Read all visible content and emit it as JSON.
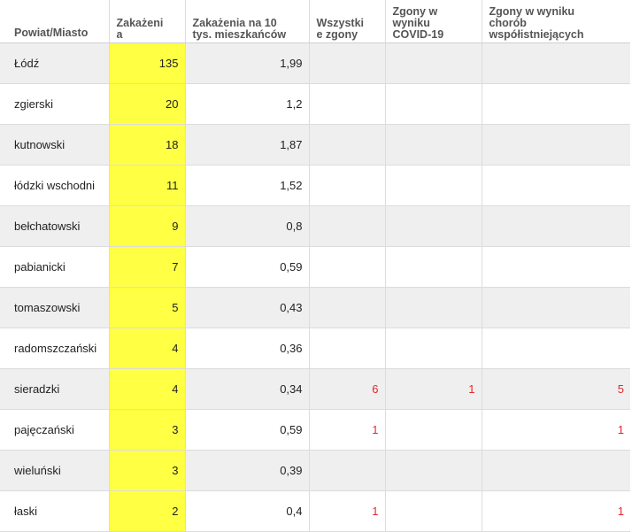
{
  "headers": [
    {
      "l1": "Powiat/Miasto",
      "l2": "",
      "l3": ""
    },
    {
      "l1": "Zakażeni",
      "l2": "a",
      "l3": ""
    },
    {
      "l1": "Zakażenia na 10",
      "l2": "tys. mieszkańców",
      "l3": ""
    },
    {
      "l1": "Wszystki",
      "l2": "e zgony",
      "l3": ""
    },
    {
      "l1": "Zgony w",
      "l2": "wyniku",
      "l3": "COVID-19"
    },
    {
      "l1": "Zgony w wyniku",
      "l2": "chorób",
      "l3": "współistniejących"
    }
  ],
  "rows": [
    {
      "name": "Łódź",
      "cases": "135",
      "per10k": "1,99",
      "all_deaths": "",
      "covid_deaths": "",
      "comorb_deaths": ""
    },
    {
      "name": "zgierski",
      "cases": "20",
      "per10k": "1,2",
      "all_deaths": "",
      "covid_deaths": "",
      "comorb_deaths": ""
    },
    {
      "name": "kutnowski",
      "cases": "18",
      "per10k": "1,87",
      "all_deaths": "",
      "covid_deaths": "",
      "comorb_deaths": ""
    },
    {
      "name": "łódzki wschodni",
      "cases": "11",
      "per10k": "1,52",
      "all_deaths": "",
      "covid_deaths": "",
      "comorb_deaths": ""
    },
    {
      "name": "bełchatowski",
      "cases": "9",
      "per10k": "0,8",
      "all_deaths": "",
      "covid_deaths": "",
      "comorb_deaths": ""
    },
    {
      "name": "pabianicki",
      "cases": "7",
      "per10k": "0,59",
      "all_deaths": "",
      "covid_deaths": "",
      "comorb_deaths": ""
    },
    {
      "name": "tomaszowski",
      "cases": "5",
      "per10k": "0,43",
      "all_deaths": "",
      "covid_deaths": "",
      "comorb_deaths": ""
    },
    {
      "name": "radomszczański",
      "cases": "4",
      "per10k": "0,36",
      "all_deaths": "",
      "covid_deaths": "",
      "comorb_deaths": ""
    },
    {
      "name": "sieradzki",
      "cases": "4",
      "per10k": "0,34",
      "all_deaths": "6",
      "covid_deaths": "1",
      "comorb_deaths": "5"
    },
    {
      "name": "pajęczański",
      "cases": "3",
      "per10k": "0,59",
      "all_deaths": "1",
      "covid_deaths": "",
      "comorb_deaths": "1"
    },
    {
      "name": "wieluński",
      "cases": "3",
      "per10k": "0,39",
      "all_deaths": "",
      "covid_deaths": "",
      "comorb_deaths": ""
    },
    {
      "name": "łaski",
      "cases": "2",
      "per10k": "0,4",
      "all_deaths": "1",
      "covid_deaths": "",
      "comorb_deaths": "1"
    }
  ],
  "colors": {
    "highlight": "#ffff44",
    "death_text": "#e8262b",
    "stripe": "#efefef"
  }
}
